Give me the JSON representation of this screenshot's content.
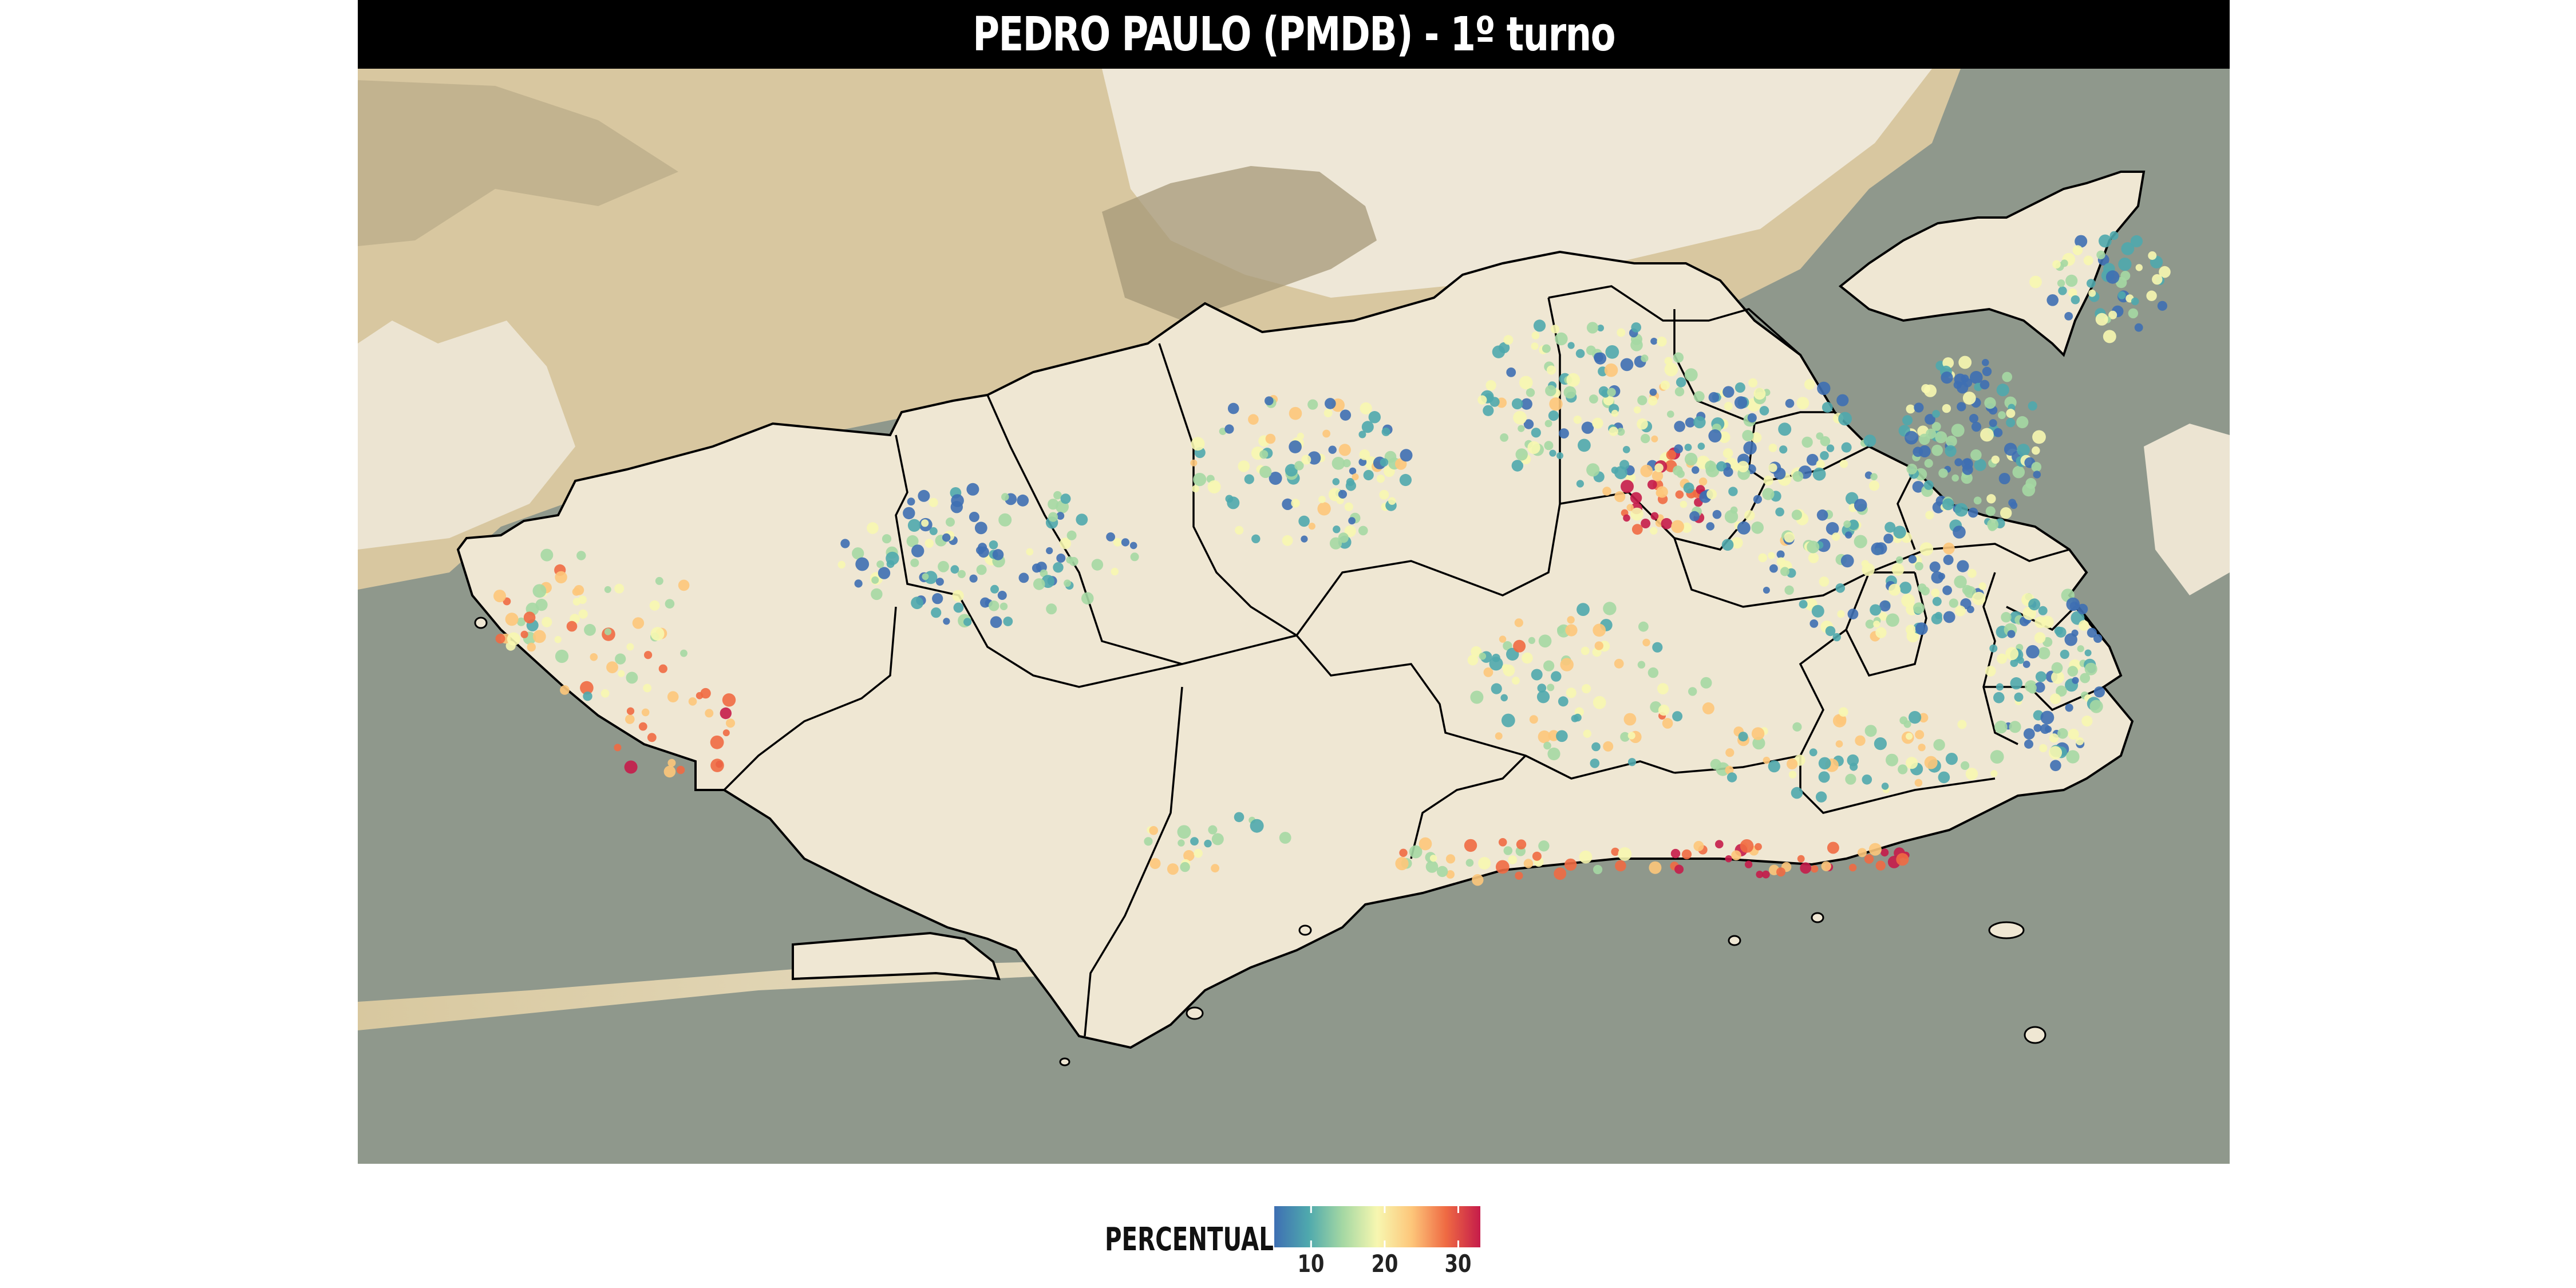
{
  "map": {
    "title": "PEDRO PAULO (PMDB) - 1º turno",
    "colors": {
      "water": "#8f988c",
      "land_outside": "#d8c8a0",
      "mountain_light": "#f1ede2",
      "city_fill": "#efe7d3",
      "boundary": "#000000",
      "title_bar": "#000000"
    }
  },
  "legend": {
    "title": "PERCENTUAL",
    "ticks": [
      "10",
      "20",
      "30"
    ],
    "tick_values": [
      10,
      20,
      30
    ],
    "range": [
      5,
      33
    ],
    "colors": [
      "#3e6fb3",
      "#4fa9ad",
      "#a5d8a3",
      "#f7f7b0",
      "#fdc67a",
      "#ef6a43",
      "#c51c4a"
    ]
  }
}
